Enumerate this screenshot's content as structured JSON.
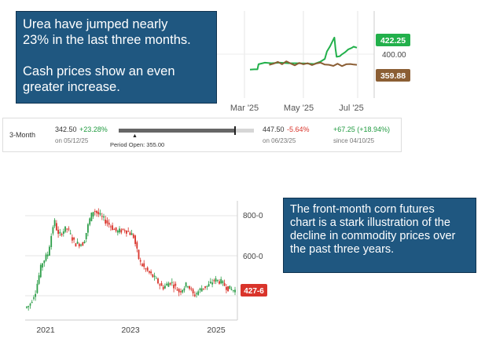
{
  "callout_top": {
    "line1": "Urea have jumped nearly",
    "line2": "23% in the last three months.",
    "line3": "Cash prices show an even",
    "line4": "greater increase."
  },
  "callout_bottom": {
    "lines": [
      "The front-month corn futures",
      "chart is a stark illustration of the",
      "decline in commodity prices over",
      "the past three years."
    ]
  },
  "range_bar": {
    "period": "3-Month",
    "low_value": "342.50",
    "low_change": "+23.28%",
    "low_date": "on 05/12/25",
    "high_value": "447.50",
    "high_change": "-5.64%",
    "high_date": "on 06/23/25",
    "period_open": "Period Open: 355.00",
    "change": "+67.25 (+18.94%)",
    "since": "since 04/10/25",
    "bar_position": 0.86
  },
  "colors": {
    "callout_bg": "#1f5780",
    "futures_line": "#22b04b",
    "cash_line": "#8b5e34",
    "up_candle": "#2e9e4a",
    "down_candle": "#d9342b",
    "last_label": "#d9342b"
  },
  "chart_data": [
    {
      "type": "line",
      "x_labels": [
        "Mar '25",
        "May '25",
        "Jul '25"
      ],
      "y_labels": [
        "400.00"
      ],
      "last_labels": {
        "futures": "422.25",
        "cash": "359.88"
      },
      "series": [
        {
          "key": "futures",
          "values": [
            [
              0.0,
              342
            ],
            [
              0.04,
              343
            ],
            [
              0.07,
              343
            ],
            [
              0.08,
              362
            ],
            [
              0.14,
              368
            ],
            [
              0.2,
              366
            ],
            [
              0.28,
              368
            ],
            [
              0.36,
              366
            ],
            [
              0.44,
              366
            ],
            [
              0.52,
              365
            ],
            [
              0.6,
              363
            ],
            [
              0.66,
              372
            ],
            [
              0.7,
              382
            ],
            [
              0.72,
              410
            ],
            [
              0.75,
              430
            ],
            [
              0.78,
              455
            ],
            [
              0.79,
              462
            ],
            [
              0.8,
              420
            ],
            [
              0.81,
              390
            ],
            [
              0.84,
              392
            ],
            [
              0.86,
              399
            ],
            [
              0.89,
              407
            ],
            [
              0.92,
              418
            ],
            [
              0.95,
              423
            ],
            [
              0.97,
              428
            ],
            [
              1.0,
              424
            ]
          ]
        },
        {
          "key": "cash",
          "values": [
            [
              0.18,
              360
            ],
            [
              0.22,
              364
            ],
            [
              0.26,
              371
            ],
            [
              0.3,
              362
            ],
            [
              0.34,
              373
            ],
            [
              0.38,
              365
            ],
            [
              0.42,
              358
            ],
            [
              0.46,
              367
            ],
            [
              0.5,
              362
            ],
            [
              0.54,
              366
            ],
            [
              0.58,
              359
            ],
            [
              0.62,
              365
            ],
            [
              0.66,
              368
            ],
            [
              0.7,
              361
            ],
            [
              0.74,
              360
            ],
            [
              0.78,
              356
            ],
            [
              0.82,
              364
            ],
            [
              0.86,
              355
            ],
            [
              0.9,
              362
            ],
            [
              0.94,
              363
            ],
            [
              0.97,
              361
            ],
            [
              1.0,
              360
            ]
          ]
        }
      ]
    },
    {
      "type": "candlestick",
      "x_labels": [
        "2021",
        "2023",
        "2025"
      ],
      "y_labels": [
        "800-0",
        "600-0"
      ],
      "last_label": "427-6",
      "trend": [
        [
          0.0,
          340
        ],
        [
          0.02,
          350
        ],
        [
          0.05,
          420
        ],
        [
          0.08,
          560
        ],
        [
          0.11,
          610
        ],
        [
          0.14,
          780
        ],
        [
          0.16,
          700
        ],
        [
          0.2,
          740
        ],
        [
          0.24,
          660
        ],
        [
          0.28,
          660
        ],
        [
          0.31,
          780
        ],
        [
          0.33,
          830
        ],
        [
          0.36,
          800
        ],
        [
          0.4,
          760
        ],
        [
          0.44,
          720
        ],
        [
          0.48,
          730
        ],
        [
          0.52,
          700
        ],
        [
          0.55,
          570
        ],
        [
          0.58,
          530
        ],
        [
          0.62,
          490
        ],
        [
          0.66,
          440
        ],
        [
          0.7,
          470
        ],
        [
          0.74,
          420
        ],
        [
          0.78,
          460
        ],
        [
          0.81,
          400
        ],
        [
          0.85,
          440
        ],
        [
          0.88,
          450
        ],
        [
          0.91,
          480
        ],
        [
          0.94,
          470
        ],
        [
          0.97,
          440
        ],
        [
          1.0,
          428
        ]
      ]
    }
  ]
}
